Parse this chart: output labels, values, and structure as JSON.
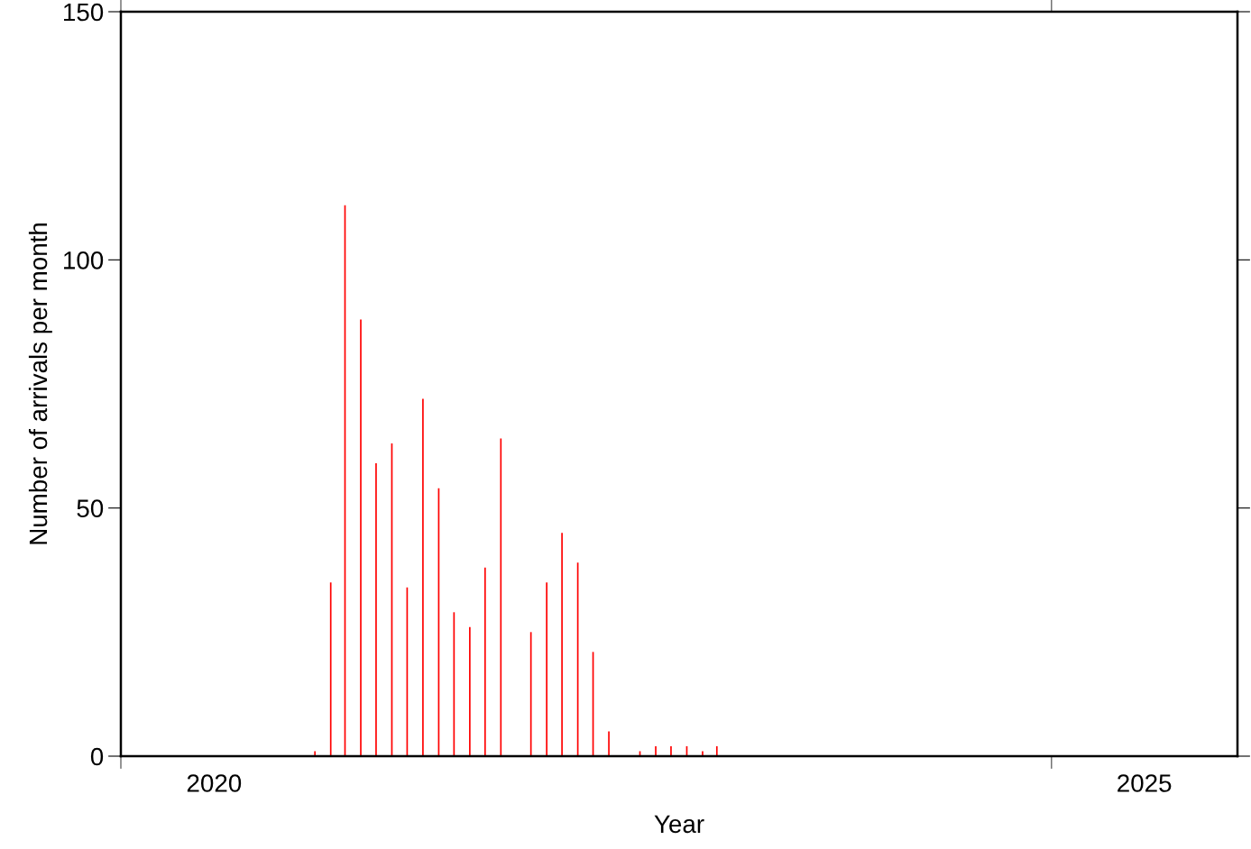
{
  "chart_data": {
    "type": "bar",
    "xlabel": "Year",
    "ylabel": "Number of arrivals per month",
    "x": [
      "2021-01-16",
      "2021-02-16",
      "2021-03-16",
      "2021-04-16",
      "2021-05-16",
      "2021-06-16",
      "2021-07-16",
      "2021-08-16",
      "2021-09-16",
      "2021-10-16",
      "2021-11-16",
      "2021-12-16",
      "2022-01-16",
      "2022-03-16",
      "2022-04-16",
      "2022-05-16",
      "2022-06-16",
      "2022-07-16",
      "2022-08-16",
      "2022-10-16",
      "2022-11-16",
      "2022-12-16",
      "2023-01-16",
      "2023-02-16",
      "2023-03-16"
    ],
    "values": [
      1,
      35,
      111,
      88,
      59,
      63,
      34,
      72,
      54,
      29,
      26,
      38,
      64,
      25,
      35,
      45,
      39,
      21,
      5,
      1,
      2,
      2,
      2,
      1,
      2
    ],
    "color": "#ff0000",
    "xlim": [
      "2020-01-01",
      "2026-01-01"
    ],
    "xticks": [
      {
        "value": "2020-01-01",
        "label": null
      },
      {
        "value": "2020-07-02",
        "label": "2020"
      },
      {
        "value": "2025-01-01",
        "label": null
      },
      {
        "value": "2025-07-02",
        "label": "2025"
      }
    ],
    "ylim": [
      0,
      150
    ],
    "yticks": [
      0,
      50,
      100,
      150
    ],
    "grid": false
  }
}
